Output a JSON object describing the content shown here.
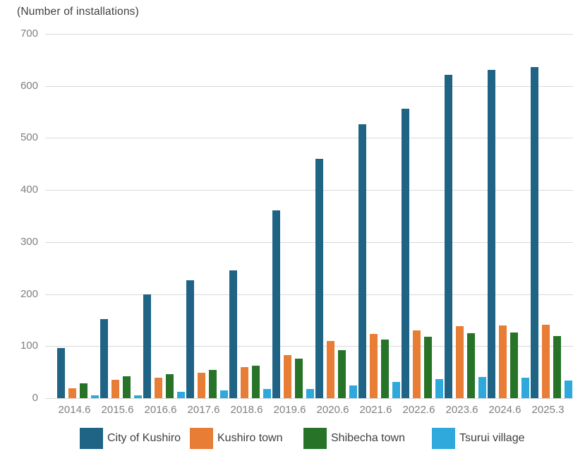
{
  "page": {
    "background": "#ffffff"
  },
  "chart_data": {
    "type": "bar",
    "title": "(Number of installations)",
    "categories": [
      "2014.6",
      "2015.6",
      "2016.6",
      "2017.6",
      "2018.6",
      "2019.6",
      "2020.6",
      "2021.6",
      "2022.6",
      "2023.6",
      "2024.6",
      "2025.3"
    ],
    "series": [
      {
        "name": "City of Kushiro",
        "color": "#1f6385",
        "values": [
          96,
          152,
          200,
          227,
          245,
          361,
          460,
          527,
          556,
          622,
          631,
          636
        ]
      },
      {
        "name": "Kushiro town",
        "color": "#e87d35",
        "values": [
          19,
          35,
          39,
          49,
          60,
          83,
          110,
          124,
          130,
          139,
          140,
          141
        ]
      },
      {
        "name": "Shibecha town",
        "color": "#277429",
        "values": [
          29,
          42,
          46,
          54,
          63,
          76,
          92,
          112,
          118,
          125,
          126,
          119
        ]
      },
      {
        "name": "Tsurui village",
        "color": "#2fa8dc",
        "values": [
          5,
          6,
          12,
          15,
          17,
          18,
          24,
          31,
          36,
          41,
          40,
          34
        ]
      }
    ],
    "ylabel": "(Number of installations)",
    "xlabel": "",
    "ylim": [
      0,
      700
    ],
    "yticks": [
      0,
      100,
      200,
      300,
      400,
      500,
      600,
      700
    ],
    "grid": "horizontal-only",
    "legend_position": "bottom",
    "colors": {
      "axis_text": "#7f7f7f",
      "title_text": "#3f3f3f",
      "legend_text": "#3f3f3f",
      "gridline": "#d9d9d9"
    }
  }
}
